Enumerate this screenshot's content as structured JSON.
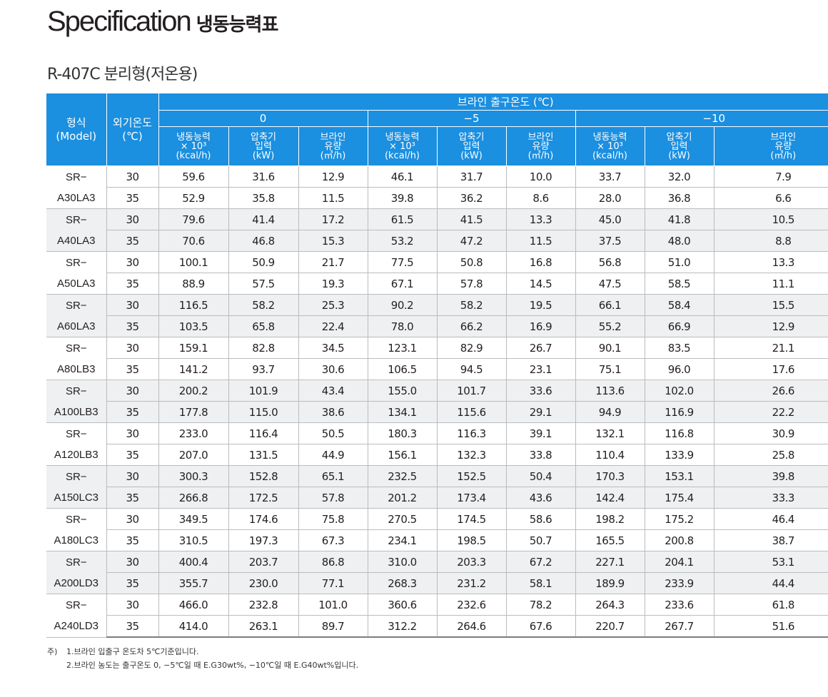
{
  "title": {
    "en": "Specification",
    "ko": "냉동능력표"
  },
  "subtitle": "R-407C 분리형(저온용)",
  "header": {
    "model": [
      "형식",
      "(Model)"
    ],
    "ambient": [
      "외기온도",
      "(℃)"
    ],
    "brine_outlet": "브라인 출구온도 (℃)",
    "temps": [
      "0",
      "−5",
      "−10"
    ],
    "col_capacity": [
      "냉동능력",
      "× 10³",
      "(kcal/h)"
    ],
    "col_input": [
      "압축기",
      "입력",
      "(kW)"
    ],
    "col_flow": [
      "브라인",
      "유량",
      "(㎥/h)"
    ]
  },
  "models": [
    {
      "line1": "SR−",
      "line2": "A30LA3",
      "rows": [
        {
          "ambient": "30",
          "v": [
            "59.6",
            "31.6",
            "12.9",
            "46.1",
            "31.7",
            "10.0",
            "33.7",
            "32.0",
            "7.9"
          ]
        },
        {
          "ambient": "35",
          "v": [
            "52.9",
            "35.8",
            "11.5",
            "39.8",
            "36.2",
            "8.6",
            "28.0",
            "36.8",
            "6.6"
          ]
        }
      ]
    },
    {
      "line1": "SR−",
      "line2": "A40LA3",
      "rows": [
        {
          "ambient": "30",
          "v": [
            "79.6",
            "41.4",
            "17.2",
            "61.5",
            "41.5",
            "13.3",
            "45.0",
            "41.8",
            "10.5"
          ]
        },
        {
          "ambient": "35",
          "v": [
            "70.6",
            "46.8",
            "15.3",
            "53.2",
            "47.2",
            "11.5",
            "37.5",
            "48.0",
            "8.8"
          ]
        }
      ]
    },
    {
      "line1": "SR−",
      "line2": "A50LA3",
      "rows": [
        {
          "ambient": "30",
          "v": [
            "100.1",
            "50.9",
            "21.7",
            "77.5",
            "50.8",
            "16.8",
            "56.8",
            "51.0",
            "13.3"
          ]
        },
        {
          "ambient": "35",
          "v": [
            "88.9",
            "57.5",
            "19.3",
            "67.1",
            "57.8",
            "14.5",
            "47.5",
            "58.5",
            "11.1"
          ]
        }
      ]
    },
    {
      "line1": "SR−",
      "line2": "A60LA3",
      "rows": [
        {
          "ambient": "30",
          "v": [
            "116.5",
            "58.2",
            "25.3",
            "90.2",
            "58.2",
            "19.5",
            "66.1",
            "58.4",
            "15.5"
          ]
        },
        {
          "ambient": "35",
          "v": [
            "103.5",
            "65.8",
            "22.4",
            "78.0",
            "66.2",
            "16.9",
            "55.2",
            "66.9",
            "12.9"
          ]
        }
      ]
    },
    {
      "line1": "SR−",
      "line2": "A80LB3",
      "rows": [
        {
          "ambient": "30",
          "v": [
            "159.1",
            "82.8",
            "34.5",
            "123.1",
            "82.9",
            "26.7",
            "90.1",
            "83.5",
            "21.1"
          ]
        },
        {
          "ambient": "35",
          "v": [
            "141.2",
            "93.7",
            "30.6",
            "106.5",
            "94.5",
            "23.1",
            "75.1",
            "96.0",
            "17.6"
          ]
        }
      ]
    },
    {
      "line1": "SR−",
      "line2": "A100LB3",
      "rows": [
        {
          "ambient": "30",
          "v": [
            "200.2",
            "101.9",
            "43.4",
            "155.0",
            "101.7",
            "33.6",
            "113.6",
            "102.0",
            "26.6"
          ]
        },
        {
          "ambient": "35",
          "v": [
            "177.8",
            "115.0",
            "38.6",
            "134.1",
            "115.6",
            "29.1",
            "94.9",
            "116.9",
            "22.2"
          ]
        }
      ]
    },
    {
      "line1": "SR−",
      "line2": "A120LB3",
      "rows": [
        {
          "ambient": "30",
          "v": [
            "233.0",
            "116.4",
            "50.5",
            "180.3",
            "116.3",
            "39.1",
            "132.1",
            "116.8",
            "30.9"
          ]
        },
        {
          "ambient": "35",
          "v": [
            "207.0",
            "131.5",
            "44.9",
            "156.1",
            "132.3",
            "33.8",
            "110.4",
            "133.9",
            "25.8"
          ]
        }
      ]
    },
    {
      "line1": "SR−",
      "line2": "A150LC3",
      "rows": [
        {
          "ambient": "30",
          "v": [
            "300.3",
            "152.8",
            "65.1",
            "232.5",
            "152.5",
            "50.4",
            "170.3",
            "153.1",
            "39.8"
          ]
        },
        {
          "ambient": "35",
          "v": [
            "266.8",
            "172.5",
            "57.8",
            "201.2",
            "173.4",
            "43.6",
            "142.4",
            "175.4",
            "33.3"
          ]
        }
      ]
    },
    {
      "line1": "SR−",
      "line2": "A180LC3",
      "rows": [
        {
          "ambient": "30",
          "v": [
            "349.5",
            "174.6",
            "75.8",
            "270.5",
            "174.5",
            "58.6",
            "198.2",
            "175.2",
            "46.4"
          ]
        },
        {
          "ambient": "35",
          "v": [
            "310.5",
            "197.3",
            "67.3",
            "234.1",
            "198.5",
            "50.7",
            "165.5",
            "200.8",
            "38.7"
          ]
        }
      ]
    },
    {
      "line1": "SR−",
      "line2": "A200LD3",
      "rows": [
        {
          "ambient": "30",
          "v": [
            "400.4",
            "203.7",
            "86.8",
            "310.0",
            "203.3",
            "67.2",
            "227.1",
            "204.1",
            "53.1"
          ]
        },
        {
          "ambient": "35",
          "v": [
            "355.7",
            "230.0",
            "77.1",
            "268.3",
            "231.2",
            "58.1",
            "189.9",
            "233.9",
            "44.4"
          ]
        }
      ]
    },
    {
      "line1": "SR−",
      "line2": "A240LD3",
      "rows": [
        {
          "ambient": "30",
          "v": [
            "466.0",
            "232.8",
            "101.0",
            "360.6",
            "232.6",
            "78.2",
            "264.3",
            "233.6",
            "61.8"
          ]
        },
        {
          "ambient": "35",
          "v": [
            "414.0",
            "263.1",
            "89.7",
            "312.2",
            "264.6",
            "67.6",
            "220.7",
            "267.7",
            "51.6"
          ]
        }
      ]
    }
  ],
  "notes": {
    "lead": "주)",
    "items": [
      "1.브라인 입출구 온도차 5℃기준입니다.",
      "2.브라인 농도는 출구온도 0, −5℃일 때 E.G30wt%, −10℃일 때 E.G40wt%입니다."
    ]
  },
  "colors": {
    "header_bg": "#1b8fe0",
    "shaded_row": "#eef0f2",
    "grid": "#b9bcbe"
  }
}
